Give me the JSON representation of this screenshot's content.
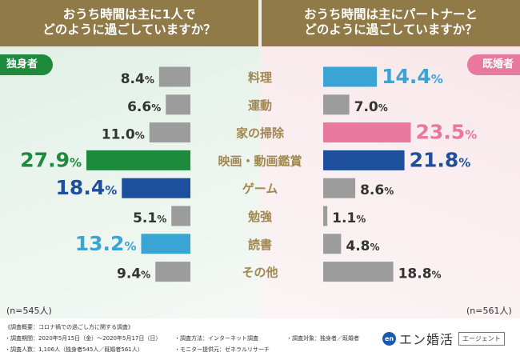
{
  "header": {
    "left_line1": "おうち時間は主に1人で",
    "left_line2": "どのように過ごしていますか？",
    "right_line1": "おうち時間は主にパートナーと",
    "right_line2": "どのように過ごしていますか？"
  },
  "badges": {
    "single": "独身者",
    "married": "既婚者"
  },
  "n_labels": {
    "single": "(n=545人)",
    "married": "(n=561人)"
  },
  "colors": {
    "gray": "#9c9c9c",
    "green": "#1e8a3c",
    "navy": "#1e4f9c",
    "light_blue": "#3aa4d4",
    "pink": "#e8799e",
    "label_gold": "#a08850",
    "header_gold": "#8f7a48"
  },
  "chart_data": {
    "type": "bar",
    "categories": [
      "料理",
      "運動",
      "家の掃除",
      "映画・動画鑑賞",
      "ゲーム",
      "勉強",
      "読書",
      "その他"
    ],
    "unit": "%",
    "series": [
      {
        "name": "独身者",
        "values": [
          8.4,
          6.6,
          11.0,
          27.9,
          18.4,
          5.1,
          13.2,
          9.4
        ],
        "colors": [
          "gray",
          "gray",
          "gray",
          "green",
          "navy",
          "gray",
          "light_blue",
          "gray"
        ]
      },
      {
        "name": "既婚者",
        "values": [
          14.4,
          7.0,
          23.5,
          21.8,
          8.6,
          1.1,
          4.8,
          18.8
        ],
        "colors": [
          "light_blue",
          "gray",
          "pink",
          "navy",
          "gray",
          "gray",
          "gray",
          "gray"
        ]
      }
    ]
  },
  "footer": {
    "title": "《調査概要：コロナ禍での過ごし方に関する調査》",
    "period": "・調査期間：2020年5月15日（金）〜2020年5月17日（日）",
    "method": "・調査方法：インターネット調査",
    "target": "・調査対象：独身者／既婚者",
    "count": "・調査人数：1,106人（独身者545人／既婚者561人）",
    "monitor": "・モニター提供元：ゼネラルリサーチ"
  },
  "brand": {
    "logo_text": "en",
    "name": "エン婚活",
    "agent": "エージェント"
  }
}
